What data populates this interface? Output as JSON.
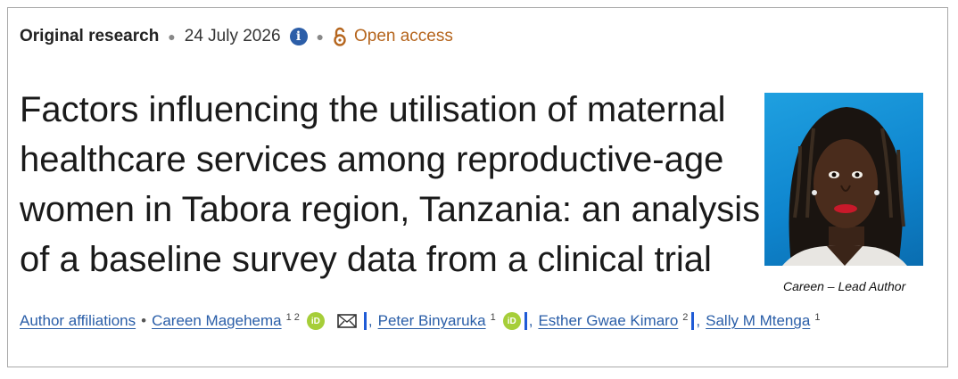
{
  "article": {
    "type": "Original research",
    "date": "24 July 2026",
    "access": "Open access",
    "title": "Factors influencing the utilisation of maternal healthcare services among reproductive-age women in Tabora region, Tanzania: an analysis of a baseline survey data from a clinical trial"
  },
  "photo": {
    "caption": "Careen – Lead Author"
  },
  "authors": {
    "affiliations_label": "Author affiliations",
    "list": [
      {
        "name": "Careen Magehema",
        "sup": "1 2"
      },
      {
        "name": "Peter Binyaruka",
        "sup": "1"
      },
      {
        "name": "Esther Gwae Kimaro",
        "sup": "2"
      },
      {
        "name": "Sally M Mtenga",
        "sup": "1"
      }
    ]
  },
  "colors": {
    "link": "#2a5ea8",
    "open_access": "#b5651d",
    "orcid": "#a6ce39",
    "info": "#2c5ea8"
  },
  "icons": [
    "info-icon",
    "open-lock-icon",
    "orcid-icon",
    "mail-icon"
  ]
}
